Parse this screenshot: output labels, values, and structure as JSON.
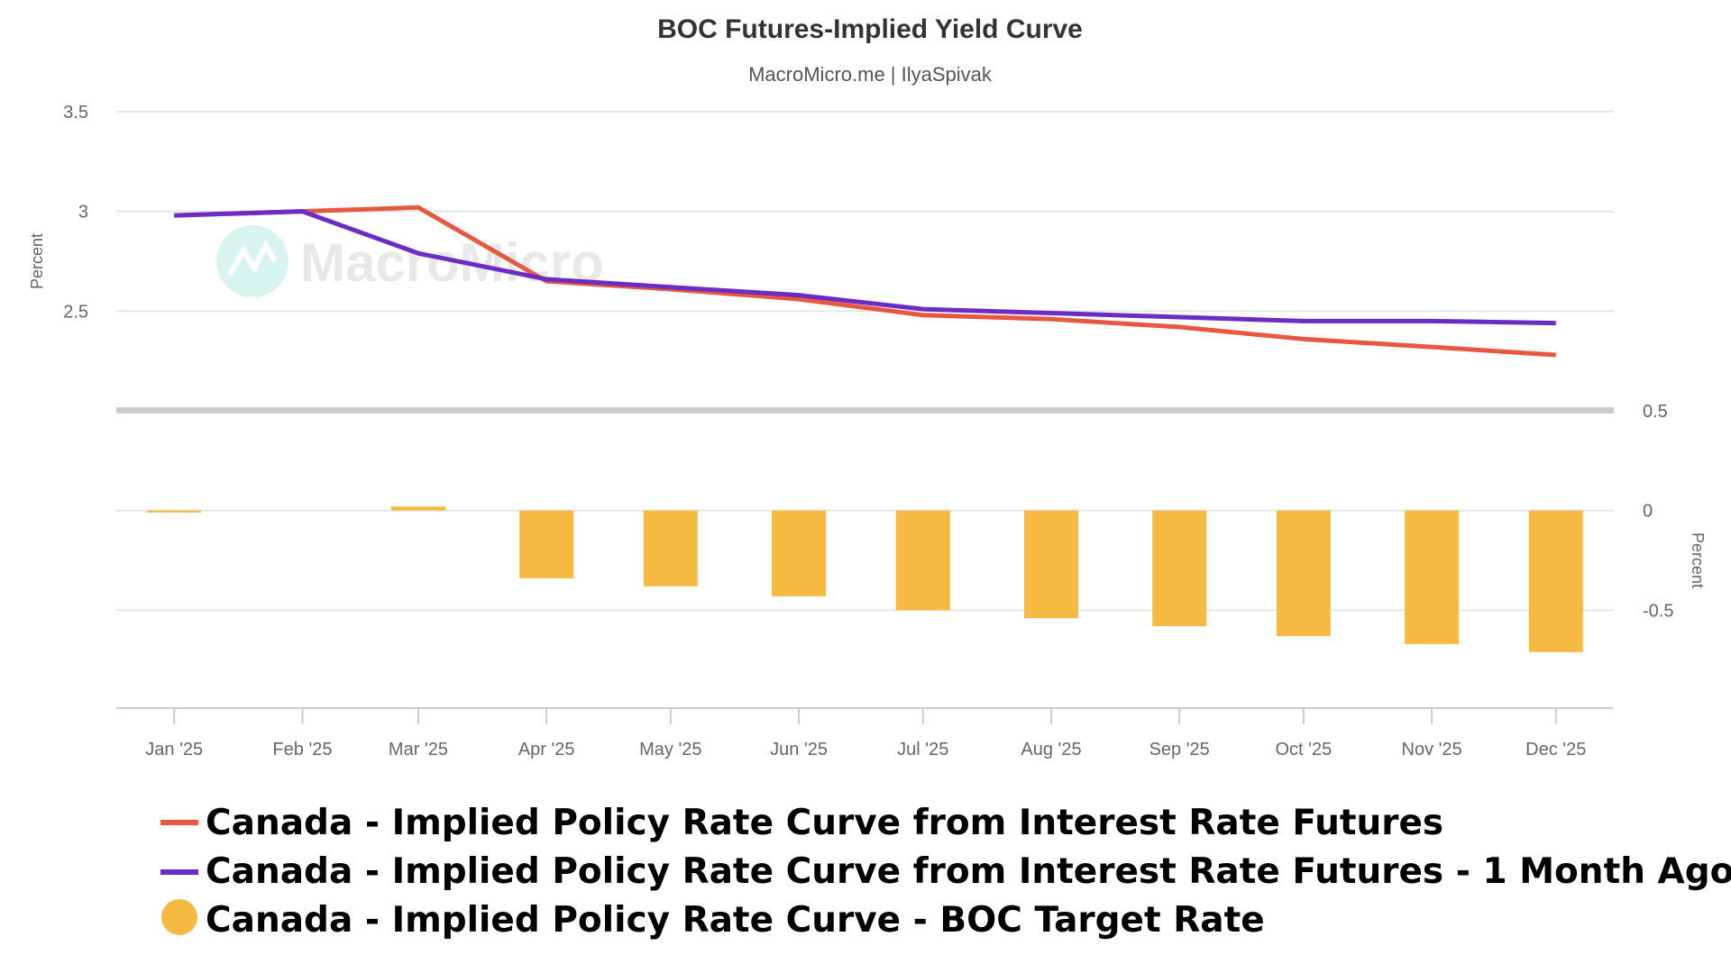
{
  "chart_data": {
    "type": "line+bar",
    "title": "BOC Futures-Implied Yield Curve",
    "subtitle": "MacroMicro.me | IlyaSpivak",
    "watermark": "MacroMicro",
    "categories": [
      "Jan '25",
      "Feb '25",
      "Mar '25",
      "Apr '25",
      "May '25",
      "Jun '25",
      "Jul '25",
      "Aug '25",
      "Sep '25",
      "Oct '25",
      "Nov '25",
      "Dec '25"
    ],
    "dates": [
      "2025-01-01",
      "2025-02-01",
      "2025-03-01",
      "2025-04-01",
      "2025-05-01",
      "2025-06-01",
      "2025-07-01",
      "2025-08-01",
      "2025-09-01",
      "2025-10-01",
      "2025-11-01",
      "2025-12-01"
    ],
    "xlim": [
      "2024-12-18",
      "2025-12-15"
    ],
    "top_panel": {
      "ylabel": "Percent",
      "ylim": [
        2.0,
        3.5
      ],
      "yticks": [
        "3.5",
        "3",
        "2.5"
      ],
      "ytick_values": [
        3.5,
        3.0,
        2.5
      ],
      "grid": true
    },
    "bottom_panel": {
      "ylabel": "Percent",
      "ylim": [
        -1.0,
        0.5
      ],
      "yticks": [
        "0.5",
        "0",
        "-0.5"
      ],
      "ytick_values": [
        0.5,
        0,
        -0.5
      ],
      "axis_side": "right",
      "grid": true
    },
    "series": [
      {
        "name": "Canada - Implied Policy Rate Curve from Interest Rate Futures",
        "type": "line",
        "panel": "top",
        "color": "#e8573f",
        "values": [
          2.98,
          3.0,
          3.02,
          2.65,
          2.61,
          2.56,
          2.48,
          2.46,
          2.42,
          2.36,
          2.32,
          2.28
        ]
      },
      {
        "name": "Canada - Implied Policy Rate Curve from Interest Rate Futures - 1 Month Ago",
        "type": "line",
        "panel": "top",
        "color": "#6c2bc4",
        "values": [
          2.98,
          3.0,
          2.79,
          2.66,
          2.62,
          2.58,
          2.51,
          2.49,
          2.47,
          2.45,
          2.45,
          2.44
        ]
      },
      {
        "name": "Canada - Implied Policy Rate Curve - BOC Target Rate",
        "type": "bar",
        "panel": "bottom",
        "color": "#f6b942",
        "values": [
          -0.01,
          0.0,
          0.02,
          -0.34,
          -0.38,
          -0.43,
          -0.5,
          -0.54,
          -0.58,
          -0.63,
          -0.67,
          -0.71
        ]
      }
    ],
    "legend_position": "bottom-left"
  }
}
